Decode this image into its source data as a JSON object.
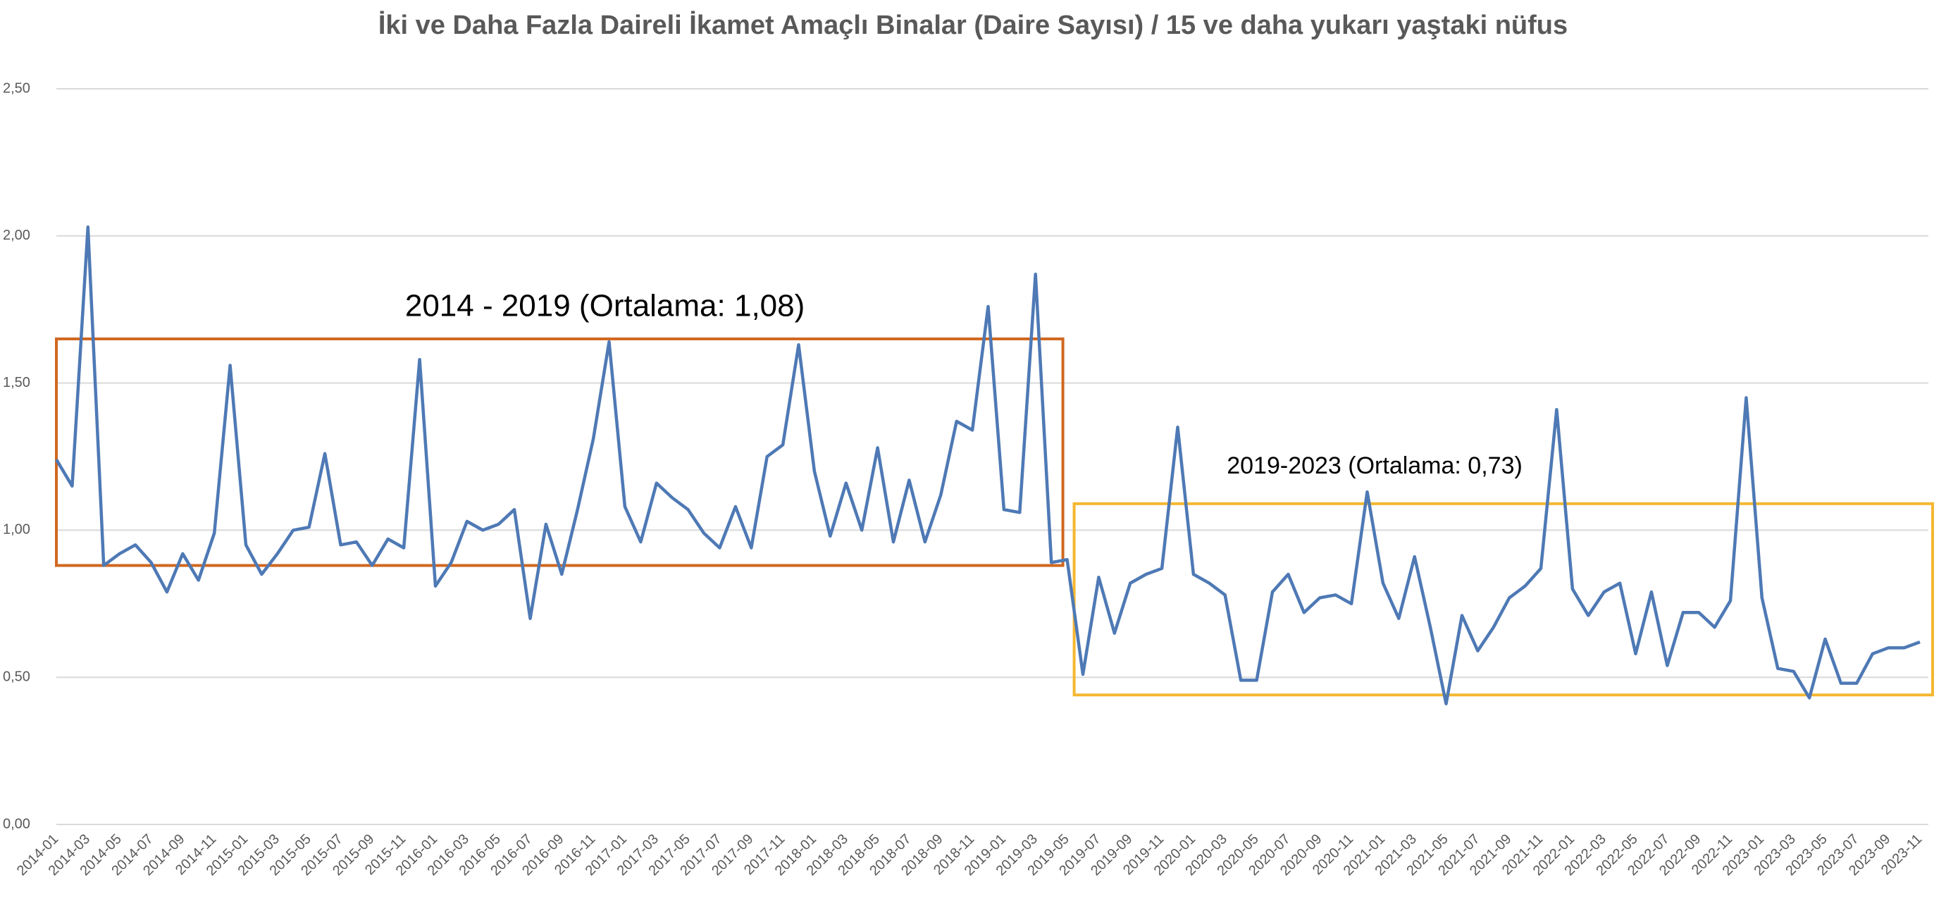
{
  "chart_data": {
    "type": "line",
    "title": "İki ve Daha Fazla Daireli İkamet Amaçlı Binalar (Daire Sayısı) / 15 ve daha yukarı yaştaki nüfus",
    "categories": [
      "2014-01",
      null,
      "2014-03",
      null,
      "2014-05",
      null,
      "2014-07",
      null,
      "2014-09",
      null,
      "2014-11",
      null,
      "2015-01",
      null,
      "2015-03",
      null,
      "2015-05",
      null,
      "2015-07",
      null,
      "2015-09",
      null,
      "2015-11",
      null,
      "2016-01",
      null,
      "2016-03",
      null,
      "2016-05",
      null,
      "2016-07",
      null,
      "2016-09",
      null,
      "2016-11",
      null,
      "2017-01",
      null,
      "2017-03",
      null,
      "2017-05",
      null,
      "2017-07",
      null,
      "2017-09",
      null,
      "2017-11",
      null,
      "2018-01",
      null,
      "2018-03",
      null,
      "2018-05",
      null,
      "2018-07",
      null,
      "2018-09",
      null,
      "2018-11",
      null,
      "2019-01",
      null,
      "2019-03",
      null,
      "2019-05",
      null,
      "2019-07",
      null,
      "2019-09",
      null,
      "2019-11",
      null,
      "2020-01",
      null,
      "2020-03",
      null,
      "2020-05",
      null,
      "2020-07",
      null,
      "2020-09",
      null,
      "2020-11",
      null,
      "2021-01",
      null,
      "2021-03",
      null,
      "2021-05",
      null,
      "2021-07",
      null,
      "2021-09",
      null,
      "2021-11",
      null,
      "2022-01",
      null,
      "2022-03",
      null,
      "2022-05",
      null,
      "2022-07",
      null,
      "2022-09",
      null,
      "2022-11",
      null,
      "2023-01",
      null,
      "2023-03",
      null,
      "2023-05",
      null,
      "2023-07",
      null,
      "2023-09",
      null,
      "2023-11"
    ],
    "values": [
      1.24,
      1.15,
      2.03,
      0.88,
      0.92,
      0.95,
      0.89,
      0.79,
      0.92,
      0.83,
      0.99,
      1.56,
      0.95,
      0.85,
      0.92,
      1.0,
      1.01,
      1.26,
      0.95,
      0.96,
      0.88,
      0.97,
      0.94,
      1.58,
      0.81,
      0.89,
      1.03,
      1.0,
      1.02,
      1.07,
      0.7,
      1.02,
      0.85,
      1.07,
      1.31,
      1.64,
      1.08,
      0.96,
      1.16,
      1.11,
      1.07,
      0.99,
      0.94,
      1.08,
      0.94,
      1.25,
      1.29,
      1.63,
      1.2,
      0.98,
      1.16,
      1.0,
      1.28,
      0.96,
      1.17,
      0.96,
      1.12,
      1.37,
      1.34,
      1.76,
      1.07,
      1.06,
      1.87,
      0.89,
      0.9,
      0.51,
      0.84,
      0.65,
      0.82,
      0.85,
      0.87,
      1.35,
      0.85,
      0.82,
      0.78,
      0.49,
      0.49,
      0.79,
      0.85,
      0.72,
      0.77,
      0.78,
      0.75,
      1.13,
      0.82,
      0.7,
      0.91,
      0.67,
      0.41,
      0.71,
      0.59,
      0.67,
      0.77,
      0.81,
      0.87,
      1.41,
      0.8,
      0.71,
      0.79,
      0.82,
      0.58,
      0.79,
      0.54,
      0.72,
      0.72,
      0.67,
      0.76,
      1.45,
      0.77,
      0.53,
      0.52,
      0.43,
      0.63,
      0.48,
      0.48,
      0.58,
      0.6,
      0.6,
      0.62
    ],
    "color": "#4e79b5",
    "ylim": [
      0,
      2.5
    ],
    "yticks": [
      {
        "value": 0,
        "label": "0,00"
      },
      {
        "value": 0.5,
        "label": "0,50"
      },
      {
        "value": 1,
        "label": "1,00"
      },
      {
        "value": 1.5,
        "label": "1,50"
      },
      {
        "value": 2,
        "label": "2,00"
      },
      {
        "value": 2.5,
        "label": "2,50"
      }
    ],
    "grid": true,
    "annotations": [
      {
        "text": "2014 - 2019 (Ortalama: 1,08)",
        "color": "#d0671f",
        "from": "2014-01",
        "to": "2019-05",
        "ylim": [
          0.88,
          1.65
        ]
      },
      {
        "text": "2019-2023 (Ortalama: 0,73)",
        "color": "#f5b731",
        "from": "2019-05",
        "to": "2023-11",
        "ylim": [
          0.44,
          1.09
        ]
      }
    ]
  }
}
